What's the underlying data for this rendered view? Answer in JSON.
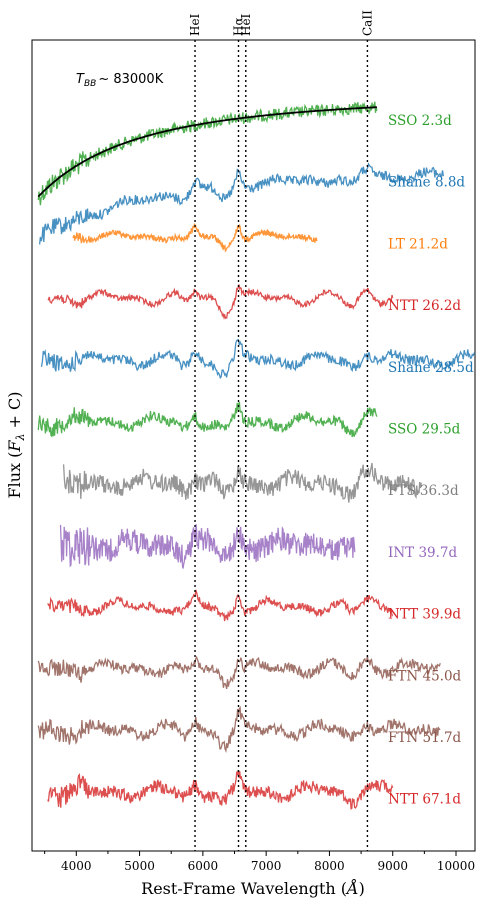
{
  "chart_data": {
    "type": "line",
    "title": "",
    "xlabel": "Rest-Frame Wavelength (Å)",
    "ylabel": "Flux (F_λ + C)",
    "xlim": [
      3300,
      10300
    ],
    "x_ticks": [
      "4000",
      "5000",
      "6000",
      "7000",
      "8000",
      "9000",
      "10000"
    ],
    "x_tick_values": [
      4000,
      5000,
      6000,
      7000,
      8000,
      9000,
      10000
    ],
    "ylabel_parts": {
      "main": "Flux (",
      "var": "F",
      "sub": "λ",
      "tail": " + C)"
    },
    "xlabel_parts": {
      "main": "Rest-Frame Wavelength (",
      "unit": "Å",
      "tail": ")"
    },
    "blackbody": {
      "label_var": "T",
      "label_sub": "BB",
      "label_value": "~ 83000K",
      "temperature_K": 83000
    },
    "line_ids": [
      {
        "label": "HeI",
        "wavelength": 5876
      },
      {
        "label": "Hα",
        "wavelength": 6563
      },
      {
        "label": "HeI",
        "wavelength": 6678
      },
      {
        "label": "CaII",
        "wavelength": 8600
      }
    ],
    "series": [
      {
        "name": "SSO 2.3d",
        "color": "#2ca02c",
        "x_range": [
          3400,
          8750
        ],
        "noise": 0.55
      },
      {
        "name": "Shane 8.8d",
        "color": "#1f77b4",
        "x_range": [
          3420,
          9800
        ],
        "noise": 0.45
      },
      {
        "name": "LT 21.2d",
        "color": "#ff7f0e",
        "x_range": [
          3950,
          7800
        ],
        "noise": 0.25
      },
      {
        "name": "NTT 26.2d",
        "color": "#d62728",
        "x_range": [
          3550,
          9000
        ],
        "noise": 0.25
      },
      {
        "name": "Shane 28.5d",
        "color": "#1f77b4",
        "x_range": [
          3450,
          10300
        ],
        "noise": 0.45
      },
      {
        "name": "SSO 29.5d",
        "color": "#2ca02c",
        "x_range": [
          3400,
          8750
        ],
        "noise": 0.45
      },
      {
        "name": "FTS 36.3d",
        "color": "#7f7f7f",
        "x_range": [
          3800,
          9450
        ],
        "noise": 0.8
      },
      {
        "name": "INT 39.7d",
        "color": "#9467bd",
        "x_range": [
          3750,
          8400
        ],
        "noise": 1.1
      },
      {
        "name": "NTT 39.9d",
        "color": "#d62728",
        "x_range": [
          3550,
          9000
        ],
        "noise": 0.35
      },
      {
        "name": "FTN 45.0d",
        "color": "#8c564b",
        "x_range": [
          3400,
          9750
        ],
        "noise": 0.45
      },
      {
        "name": "FTN 51.7d",
        "color": "#8c564b",
        "x_range": [
          3400,
          9750
        ],
        "noise": 0.5
      },
      {
        "name": "NTT 67.1d",
        "color": "#d62728",
        "x_range": [
          3550,
          9000
        ],
        "noise": 0.55
      }
    ]
  }
}
